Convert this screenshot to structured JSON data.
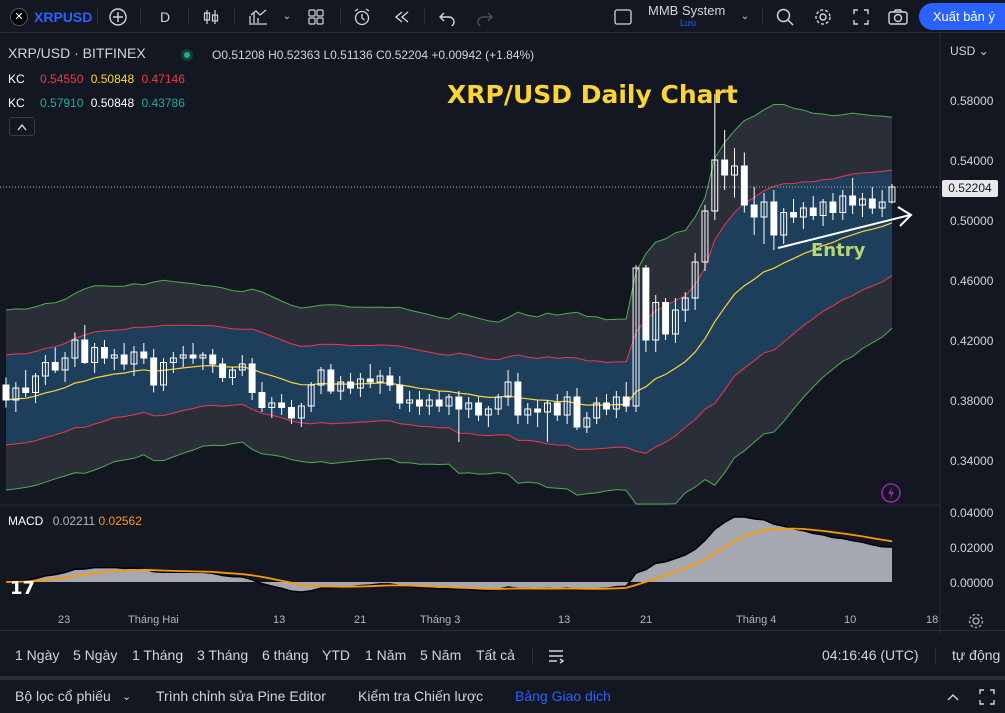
{
  "toolbar": {
    "symbol": "XRPUSD",
    "interval": "D",
    "layout_name": "MMB System",
    "layout_status": "Lưu",
    "publish": "Xuất bản ý"
  },
  "legend": {
    "pair": "XRP/USD · BITFINEX",
    "o_label": "O",
    "o": "0.51208",
    "h_label": "H",
    "h": "0.52363",
    "l_label": "L",
    "l": "0.51136",
    "c_label": "C",
    "c": "0.52204",
    "change": "+0.00942 (+1.84%)"
  },
  "kc1": {
    "label": "KC",
    "upper": "0.54550",
    "mid": "0.50848",
    "lower": "0.47146"
  },
  "kc2": {
    "label": "KC",
    "upper": "0.57910",
    "mid": "0.50848",
    "lower": "0.43786"
  },
  "annotations": {
    "title": "XRP/USD Daily Chart",
    "entry": "Entry"
  },
  "price_axis": {
    "currency": "USD",
    "labels": [
      "0.58000",
      "0.54000",
      "0.50000",
      "0.46000",
      "0.42000",
      "0.38000",
      "0.34000"
    ],
    "current_price": "0.52204"
  },
  "macd": {
    "label": "MACD",
    "macd_value": "0.02211",
    "signal_value": "0.02562",
    "axis_labels": [
      "0.04000",
      "0.02000",
      "0.00000"
    ]
  },
  "time_axis": [
    "23",
    "Tháng Hai",
    "13",
    "21",
    "Tháng 3",
    "13",
    "21",
    "Tháng 4",
    "10",
    "18"
  ],
  "ranges": [
    "1 Ngày",
    "5 Ngày",
    "1 Tháng",
    "3 Tháng",
    "6 tháng",
    "YTD",
    "1 Năm",
    "5 Năm",
    "Tất cả"
  ],
  "clock": "04:16:46 (UTC)",
  "auto_scale": "tự động",
  "bottom_tabs": [
    "Bộ lọc cổ phiếu",
    "Trình chỉnh sửa Pine Editor",
    "Kiểm tra Chiến lược",
    "Bảng Giao dịch"
  ],
  "colors": {
    "accent": "#2962ff",
    "up_candle": "#ffffff",
    "down_candle": "#ffffff",
    "kc_inner_fill": "#1e3f5c",
    "kc_outer_fill": "#2a2e39",
    "kc_inner_upper": "#f23645",
    "kc_outer_upper": "#4caf50",
    "kc_mid": "#fcd535",
    "macd_line": "#000000",
    "signal_line": "#ff9800"
  },
  "chart_data": {
    "type": "candlestick",
    "title": "XRP/USD Daily Chart",
    "ylim": [
      0.31,
      0.6
    ],
    "candles": [
      [
        0.39,
        0.395,
        0.375,
        0.38
      ],
      [
        0.38,
        0.392,
        0.372,
        0.388
      ],
      [
        0.388,
        0.4,
        0.382,
        0.385
      ],
      [
        0.385,
        0.398,
        0.378,
        0.396
      ],
      [
        0.396,
        0.41,
        0.39,
        0.405
      ],
      [
        0.405,
        0.415,
        0.398,
        0.4
      ],
      [
        0.4,
        0.412,
        0.392,
        0.408
      ],
      [
        0.408,
        0.425,
        0.402,
        0.42
      ],
      [
        0.42,
        0.43,
        0.404,
        0.405
      ],
      [
        0.405,
        0.418,
        0.398,
        0.415
      ],
      [
        0.415,
        0.42,
        0.404,
        0.408
      ],
      [
        0.408,
        0.414,
        0.4,
        0.41
      ],
      [
        0.41,
        0.418,
        0.4,
        0.404
      ],
      [
        0.404,
        0.416,
        0.396,
        0.412
      ],
      [
        0.412,
        0.418,
        0.404,
        0.408
      ],
      [
        0.408,
        0.414,
        0.385,
        0.39
      ],
      [
        0.39,
        0.408,
        0.386,
        0.405
      ],
      [
        0.405,
        0.412,
        0.398,
        0.408
      ],
      [
        0.408,
        0.416,
        0.402,
        0.41
      ],
      [
        0.41,
        0.418,
        0.404,
        0.408
      ],
      [
        0.408,
        0.412,
        0.4,
        0.41
      ],
      [
        0.41,
        0.414,
        0.398,
        0.404
      ],
      [
        0.404,
        0.408,
        0.392,
        0.395
      ],
      [
        0.395,
        0.402,
        0.39,
        0.4
      ],
      [
        0.4,
        0.41,
        0.396,
        0.404
      ],
      [
        0.404,
        0.408,
        0.38,
        0.385
      ],
      [
        0.385,
        0.392,
        0.372,
        0.375
      ],
      [
        0.375,
        0.382,
        0.368,
        0.378
      ],
      [
        0.378,
        0.384,
        0.37,
        0.375
      ],
      [
        0.375,
        0.38,
        0.364,
        0.368
      ],
      [
        0.368,
        0.378,
        0.362,
        0.376
      ],
      [
        0.376,
        0.392,
        0.372,
        0.39
      ],
      [
        0.39,
        0.402,
        0.384,
        0.4
      ],
      [
        0.4,
        0.404,
        0.384,
        0.386
      ],
      [
        0.386,
        0.396,
        0.38,
        0.392
      ],
      [
        0.392,
        0.398,
        0.384,
        0.388
      ],
      [
        0.388,
        0.398,
        0.382,
        0.394
      ],
      [
        0.394,
        0.404,
        0.388,
        0.392
      ],
      [
        0.392,
        0.4,
        0.384,
        0.396
      ],
      [
        0.396,
        0.402,
        0.386,
        0.39
      ],
      [
        0.39,
        0.396,
        0.374,
        0.378
      ],
      [
        0.378,
        0.386,
        0.372,
        0.38
      ],
      [
        0.38,
        0.386,
        0.37,
        0.376
      ],
      [
        0.376,
        0.384,
        0.37,
        0.38
      ],
      [
        0.38,
        0.386,
        0.372,
        0.376
      ],
      [
        0.376,
        0.384,
        0.37,
        0.382
      ],
      [
        0.382,
        0.386,
        0.352,
        0.374
      ],
      [
        0.374,
        0.382,
        0.368,
        0.378
      ],
      [
        0.378,
        0.382,
        0.366,
        0.37
      ],
      [
        0.37,
        0.376,
        0.362,
        0.374
      ],
      [
        0.374,
        0.384,
        0.37,
        0.382
      ],
      [
        0.382,
        0.4,
        0.376,
        0.392
      ],
      [
        0.392,
        0.398,
        0.364,
        0.37
      ],
      [
        0.37,
        0.378,
        0.364,
        0.374
      ],
      [
        0.374,
        0.38,
        0.362,
        0.372
      ],
      [
        0.372,
        0.38,
        0.352,
        0.378
      ],
      [
        0.378,
        0.384,
        0.366,
        0.37
      ],
      [
        0.37,
        0.386,
        0.364,
        0.382
      ],
      [
        0.382,
        0.388,
        0.36,
        0.362
      ],
      [
        0.362,
        0.372,
        0.358,
        0.368
      ],
      [
        0.368,
        0.382,
        0.364,
        0.378
      ],
      [
        0.378,
        0.384,
        0.37,
        0.374
      ],
      [
        0.374,
        0.386,
        0.368,
        0.382
      ],
      [
        0.382,
        0.392,
        0.372,
        0.376
      ],
      [
        0.376,
        0.47,
        0.372,
        0.468
      ],
      [
        0.468,
        0.47,
        0.412,
        0.42
      ],
      [
        0.42,
        0.45,
        0.412,
        0.445
      ],
      [
        0.445,
        0.448,
        0.42,
        0.424
      ],
      [
        0.424,
        0.448,
        0.418,
        0.44
      ],
      [
        0.44,
        0.452,
        0.432,
        0.448
      ],
      [
        0.448,
        0.478,
        0.44,
        0.472
      ],
      [
        0.472,
        0.51,
        0.466,
        0.506
      ],
      [
        0.506,
        0.584,
        0.5,
        0.54
      ],
      [
        0.54,
        0.56,
        0.52,
        0.53
      ],
      [
        0.53,
        0.548,
        0.515,
        0.536
      ],
      [
        0.536,
        0.545,
        0.505,
        0.51
      ],
      [
        0.51,
        0.522,
        0.49,
        0.502
      ],
      [
        0.502,
        0.518,
        0.484,
        0.512
      ],
      [
        0.512,
        0.52,
        0.48,
        0.49
      ],
      [
        0.49,
        0.508,
        0.484,
        0.505
      ],
      [
        0.505,
        0.514,
        0.498,
        0.502
      ],
      [
        0.502,
        0.512,
        0.494,
        0.508
      ],
      [
        0.508,
        0.516,
        0.5,
        0.503
      ],
      [
        0.503,
        0.514,
        0.496,
        0.512
      ],
      [
        0.512,
        0.518,
        0.5,
        0.505
      ],
      [
        0.505,
        0.52,
        0.5,
        0.516
      ],
      [
        0.516,
        0.528,
        0.504,
        0.51
      ],
      [
        0.51,
        0.518,
        0.502,
        0.514
      ],
      [
        0.514,
        0.522,
        0.504,
        0.508
      ],
      [
        0.508,
        0.52,
        0.502,
        0.512
      ],
      [
        0.512,
        0.524,
        0.511,
        0.522
      ]
    ]
  }
}
